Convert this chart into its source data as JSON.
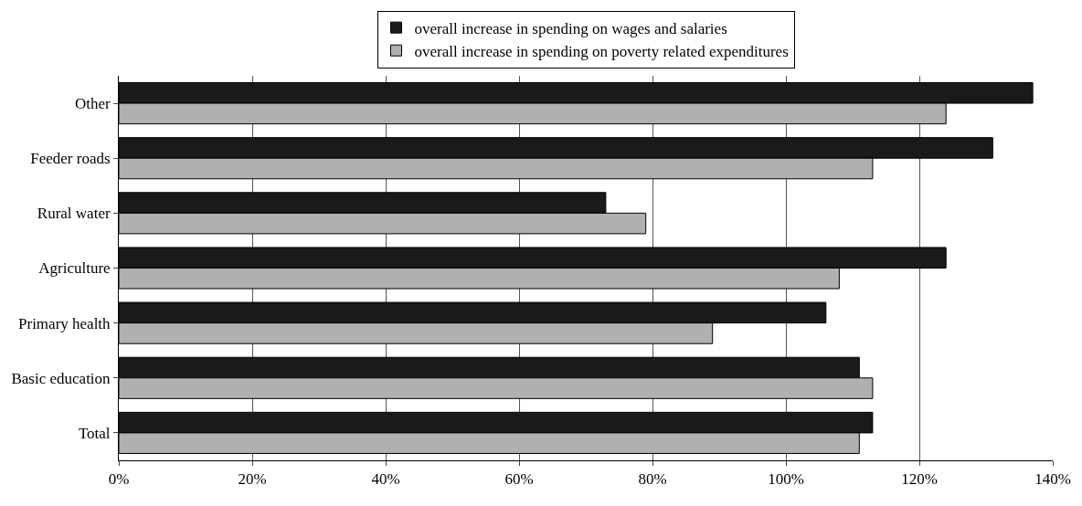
{
  "chart_data": {
    "type": "bar",
    "orientation": "horizontal",
    "categories": [
      "Other",
      "Feeder roads",
      "Rural water",
      "Agriculture",
      "Primary health",
      "Basic education",
      "Total"
    ],
    "series": [
      {
        "name": "overall increase in spending on wages and salaries",
        "color": "#1a1a1a",
        "values": [
          137,
          131,
          73,
          124,
          106,
          111,
          113
        ]
      },
      {
        "name": "overall increase in spending on poverty related expenditures",
        "color": "#b0b0b0",
        "values": [
          124,
          113,
          79,
          108,
          89,
          113,
          111
        ]
      }
    ],
    "xlim": [
      0,
      140
    ],
    "xticks": [
      {
        "value": 0,
        "label": "0%"
      },
      {
        "value": 20,
        "label": "20%"
      },
      {
        "value": 40,
        "label": "40%"
      },
      {
        "value": 60,
        "label": "60%"
      },
      {
        "value": 80,
        "label": "80%"
      },
      {
        "value": 100,
        "label": "100%"
      },
      {
        "value": 120,
        "label": "120%"
      },
      {
        "value": 140,
        "label": "140%"
      }
    ],
    "grid": "x",
    "legend": "top"
  }
}
